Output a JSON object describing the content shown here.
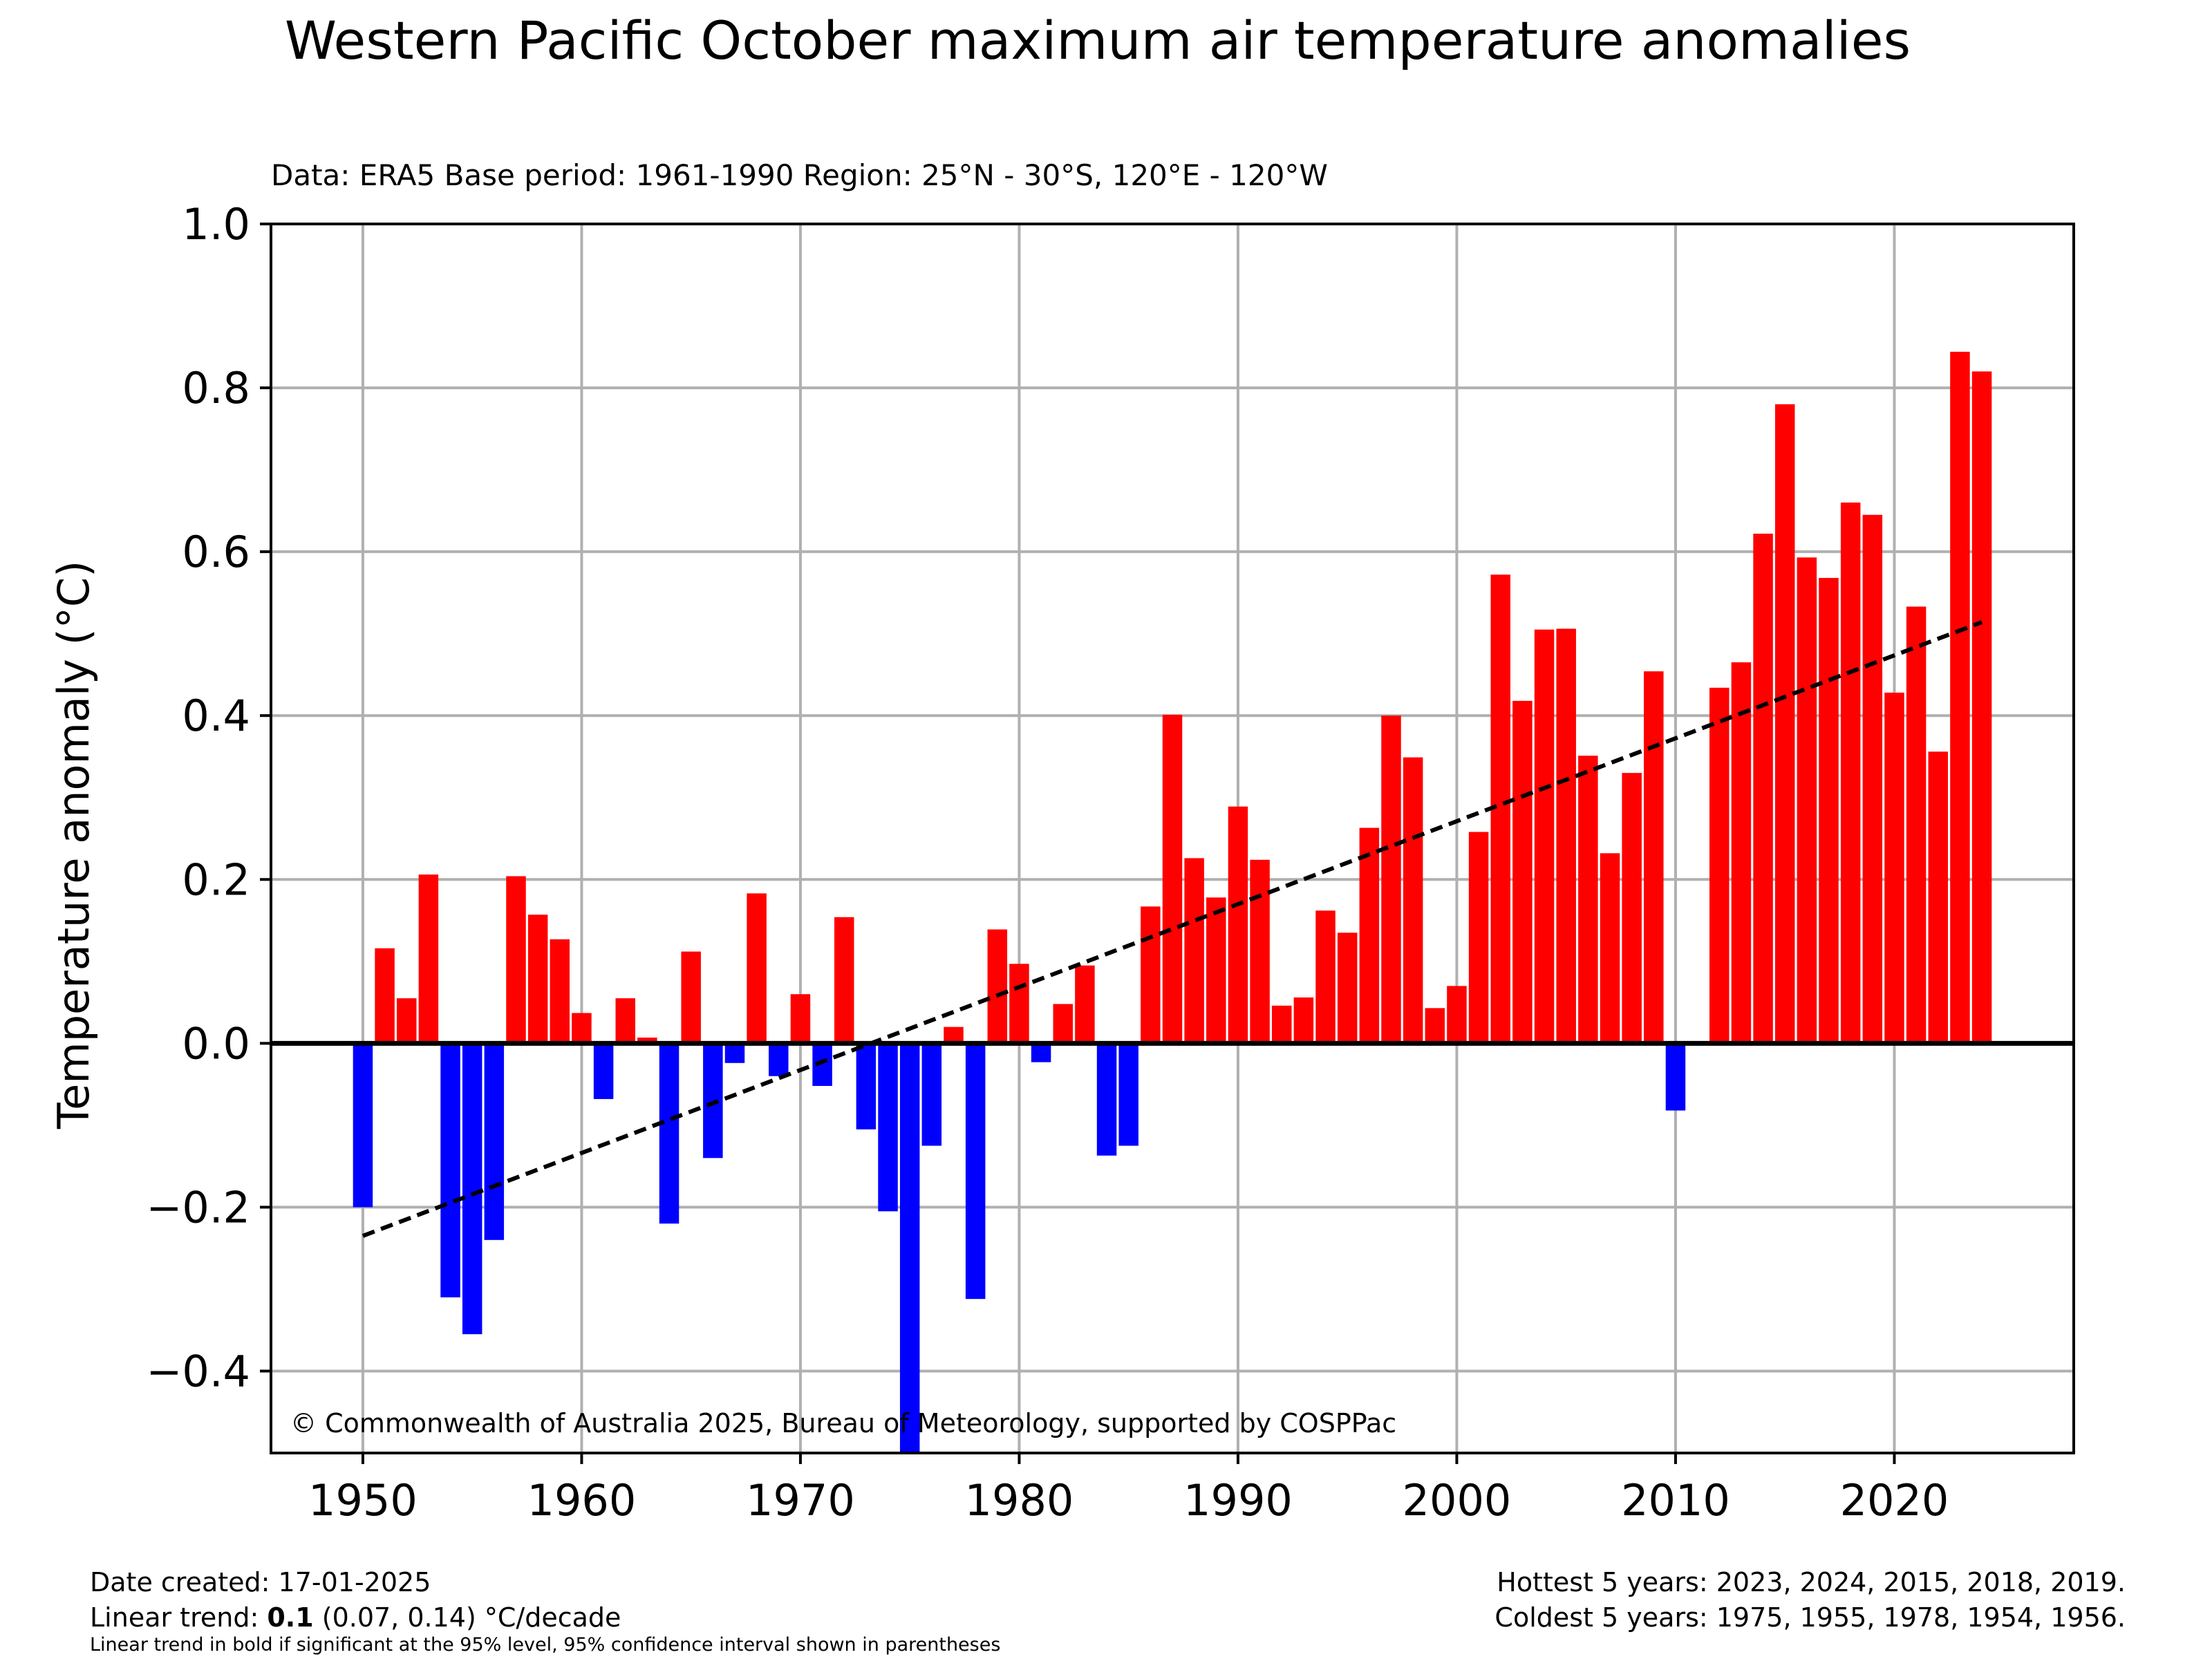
{
  "title": "Western Pacific October maximum air temperature anomalies",
  "subtitle": "Data: ERA5  Base period: 1961-1990  Region: 25°N - 30°S, 120°E - 120°W",
  "copyright": "© Commonwealth of Australia 2025, Bureau of Meteorology, supported by COSPPac",
  "footer": {
    "date_created": "Date created: 17-01-2025",
    "trend_prefix": "Linear trend: ",
    "trend_value": "0.1",
    "trend_suffix": " (0.07, 0.14) °C/decade",
    "trend_note": "Linear trend in bold if significant at the 95% level, 95% confidence interval shown in parentheses",
    "hottest": "Hottest 5 years: 2023, 2024, 2015, 2018, 2019.",
    "coldest": "Coldest 5 years: 1975, 1955, 1978, 1954, 1956."
  },
  "colors": {
    "positive": "#ff0000",
    "negative": "#0000ff",
    "grid": "#b0b0b0",
    "trend": "#000000"
  },
  "chart_data": {
    "type": "bar",
    "title": "Western Pacific October maximum air temperature anomalies",
    "xlabel": "",
    "ylabel": "Temperature anomaly (°C)",
    "xlim": [
      1945.8,
      2028.2
    ],
    "ylim": [
      -0.5,
      1.0
    ],
    "x_ticks": [
      1950,
      1960,
      1970,
      1980,
      1990,
      2000,
      2010,
      2020
    ],
    "y_ticks": [
      -0.4,
      -0.2,
      0.0,
      0.2,
      0.4,
      0.6,
      0.8,
      1.0
    ],
    "y_tick_labels": [
      "−0.4",
      "−0.2",
      "0.0",
      "0.2",
      "0.4",
      "0.6",
      "0.8",
      "1.0"
    ],
    "grid": true,
    "x": [
      1950,
      1951,
      1952,
      1953,
      1954,
      1955,
      1956,
      1957,
      1958,
      1959,
      1960,
      1961,
      1962,
      1963,
      1964,
      1965,
      1966,
      1967,
      1968,
      1969,
      1970,
      1971,
      1972,
      1973,
      1974,
      1975,
      1976,
      1977,
      1978,
      1979,
      1980,
      1981,
      1982,
      1983,
      1984,
      1985,
      1986,
      1987,
      1988,
      1989,
      1990,
      1991,
      1992,
      1993,
      1994,
      1995,
      1996,
      1997,
      1998,
      1999,
      2000,
      2001,
      2002,
      2003,
      2004,
      2005,
      2006,
      2007,
      2008,
      2009,
      2010,
      2011,
      2012,
      2013,
      2014,
      2015,
      2016,
      2017,
      2018,
      2019,
      2020,
      2021,
      2022,
      2023,
      2024
    ],
    "values": [
      -0.2,
      0.116,
      0.055,
      0.206,
      -0.31,
      -0.355,
      -0.24,
      0.204,
      0.157,
      0.127,
      0.037,
      -0.068,
      0.055,
      0.007,
      -0.22,
      0.112,
      -0.14,
      -0.024,
      0.183,
      -0.04,
      0.06,
      -0.052,
      0.154,
      -0.105,
      -0.205,
      -0.5,
      -0.125,
      0.02,
      -0.312,
      0.139,
      0.097,
      -0.023,
      0.048,
      0.095,
      -0.137,
      -0.125,
      0.167,
      0.401,
      0.226,
      0.178,
      0.289,
      0.224,
      0.046,
      0.056,
      0.162,
      0.135,
      0.263,
      0.4,
      0.349,
      0.043,
      0.07,
      0.258,
      0.572,
      0.418,
      0.505,
      0.506,
      0.351,
      0.232,
      0.33,
      0.454,
      -0.082,
      0.0,
      0.434,
      0.465,
      0.622,
      0.78,
      0.593,
      0.568,
      0.66,
      0.645,
      0.428,
      0.533,
      0.356,
      0.844,
      0.82
    ],
    "trend_line": {
      "x": [
        1950,
        2024
      ],
      "y": [
        -0.235,
        0.514
      ]
    }
  }
}
